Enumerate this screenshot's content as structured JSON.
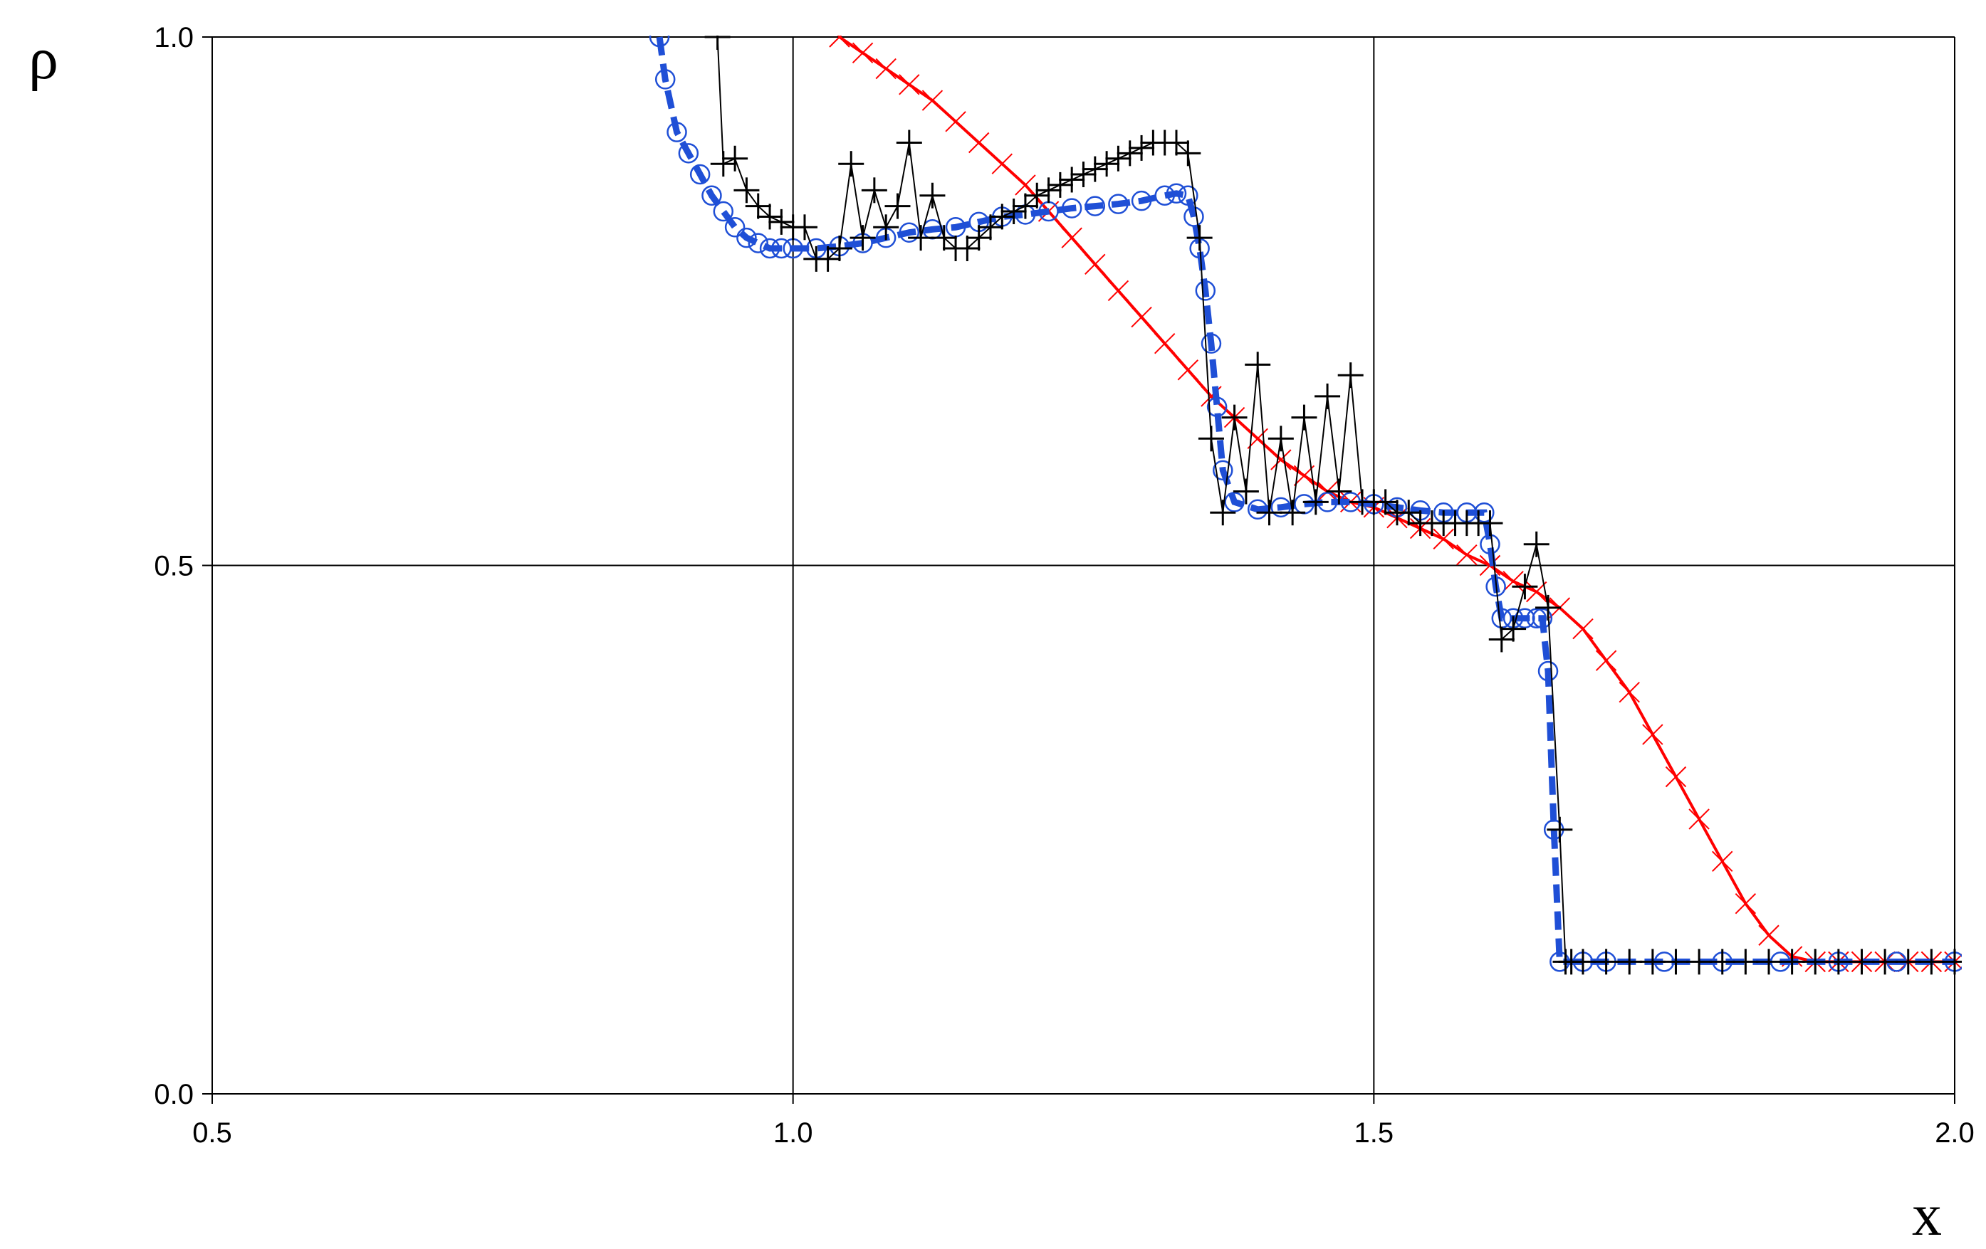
{
  "chart_data": {
    "type": "line",
    "xlabel": "x",
    "ylabel": "ρ",
    "xlim": [
      0.5,
      2.0
    ],
    "ylim": [
      0.0,
      1.0
    ],
    "xticks": [
      "0.5",
      "1.0",
      "1.5",
      "2.0"
    ],
    "yticks": [
      "0.0",
      "0.5",
      "1.0"
    ],
    "grid": true,
    "series": [
      {
        "color": "#ff0000",
        "style": "solid line with x markers",
        "x": [
          1.04,
          1.06,
          1.08,
          1.1,
          1.12,
          1.14,
          1.16,
          1.18,
          1.2,
          1.22,
          1.24,
          1.26,
          1.28,
          1.3,
          1.32,
          1.34,
          1.36,
          1.38,
          1.4,
          1.42,
          1.44,
          1.46,
          1.48,
          1.5,
          1.52,
          1.54,
          1.56,
          1.58,
          1.6,
          1.62,
          1.64,
          1.66,
          1.68,
          1.7,
          1.72,
          1.74,
          1.76,
          1.78,
          1.8,
          1.82,
          1.84,
          1.86,
          1.88,
          1.9,
          1.92,
          1.94,
          1.96,
          1.98,
          2.0
        ],
        "y": [
          1.0,
          0.985,
          0.97,
          0.955,
          0.94,
          0.92,
          0.9,
          0.88,
          0.86,
          0.835,
          0.81,
          0.785,
          0.76,
          0.735,
          0.71,
          0.685,
          0.66,
          0.64,
          0.62,
          0.6,
          0.585,
          0.57,
          0.56,
          0.555,
          0.545,
          0.535,
          0.525,
          0.51,
          0.5,
          0.485,
          0.475,
          0.46,
          0.44,
          0.41,
          0.38,
          0.34,
          0.3,
          0.26,
          0.22,
          0.18,
          0.15,
          0.13,
          0.125,
          0.125,
          0.125,
          0.125,
          0.125,
          0.125,
          0.125
        ]
      },
      {
        "color": "#1f4fd6",
        "style": "thick dashed line with circle markers",
        "x": [
          0.885,
          0.89,
          0.9,
          0.91,
          0.92,
          0.93,
          0.94,
          0.95,
          0.96,
          0.97,
          0.98,
          0.99,
          1.0,
          1.02,
          1.04,
          1.06,
          1.08,
          1.1,
          1.12,
          1.14,
          1.16,
          1.18,
          1.2,
          1.22,
          1.24,
          1.26,
          1.28,
          1.3,
          1.32,
          1.33,
          1.34,
          1.345,
          1.35,
          1.355,
          1.36,
          1.365,
          1.37,
          1.38,
          1.4,
          1.42,
          1.44,
          1.46,
          1.48,
          1.5,
          1.52,
          1.54,
          1.56,
          1.58,
          1.595,
          1.6,
          1.605,
          1.61,
          1.62,
          1.63,
          1.64,
          1.645,
          1.65,
          1.655,
          1.66,
          1.68,
          1.7,
          1.75,
          1.8,
          1.85,
          1.9,
          1.95,
          2.0
        ],
        "y": [
          1.0,
          0.96,
          0.91,
          0.89,
          0.87,
          0.85,
          0.835,
          0.82,
          0.81,
          0.805,
          0.8,
          0.8,
          0.8,
          0.8,
          0.802,
          0.805,
          0.81,
          0.815,
          0.818,
          0.82,
          0.825,
          0.83,
          0.832,
          0.835,
          0.838,
          0.84,
          0.842,
          0.845,
          0.85,
          0.852,
          0.85,
          0.83,
          0.8,
          0.76,
          0.71,
          0.65,
          0.59,
          0.56,
          0.553,
          0.555,
          0.558,
          0.56,
          0.56,
          0.558,
          0.555,
          0.552,
          0.55,
          0.55,
          0.55,
          0.52,
          0.48,
          0.45,
          0.45,
          0.45,
          0.45,
          0.45,
          0.4,
          0.25,
          0.125,
          0.125,
          0.125,
          0.125,
          0.125,
          0.125,
          0.125,
          0.125,
          0.125
        ]
      },
      {
        "color": "#000000",
        "style": "thin solid line with plus markers",
        "x": [
          0.935,
          0.94,
          0.95,
          0.96,
          0.97,
          0.98,
          0.99,
          1.0,
          1.01,
          1.02,
          1.03,
          1.04,
          1.05,
          1.06,
          1.07,
          1.08,
          1.09,
          1.1,
          1.11,
          1.12,
          1.13,
          1.14,
          1.15,
          1.16,
          1.17,
          1.18,
          1.19,
          1.2,
          1.21,
          1.22,
          1.23,
          1.24,
          1.25,
          1.26,
          1.27,
          1.28,
          1.29,
          1.3,
          1.31,
          1.32,
          1.33,
          1.34,
          1.35,
          1.36,
          1.37,
          1.38,
          1.39,
          1.4,
          1.41,
          1.42,
          1.43,
          1.44,
          1.45,
          1.46,
          1.47,
          1.48,
          1.49,
          1.5,
          1.51,
          1.52,
          1.53,
          1.54,
          1.55,
          1.56,
          1.57,
          1.58,
          1.59,
          1.6,
          1.61,
          1.62,
          1.63,
          1.64,
          1.65,
          1.66,
          1.665,
          1.67,
          1.68,
          1.7,
          1.72,
          1.74,
          1.76,
          1.78,
          1.8,
          1.82,
          1.84,
          1.86,
          1.88,
          1.9,
          1.92,
          1.94,
          1.96,
          1.98,
          2.0
        ],
        "y": [
          1.0,
          0.88,
          0.885,
          0.855,
          0.84,
          0.83,
          0.825,
          0.82,
          0.82,
          0.79,
          0.79,
          0.8,
          0.88,
          0.81,
          0.855,
          0.82,
          0.84,
          0.9,
          0.81,
          0.85,
          0.81,
          0.8,
          0.8,
          0.81,
          0.82,
          0.83,
          0.835,
          0.84,
          0.85,
          0.855,
          0.86,
          0.865,
          0.87,
          0.875,
          0.88,
          0.885,
          0.89,
          0.895,
          0.9,
          0.9,
          0.9,
          0.89,
          0.81,
          0.62,
          0.55,
          0.64,
          0.57,
          0.69,
          0.55,
          0.62,
          0.55,
          0.64,
          0.56,
          0.66,
          0.57,
          0.68,
          0.56,
          0.56,
          0.56,
          0.55,
          0.55,
          0.54,
          0.54,
          0.54,
          0.54,
          0.54,
          0.54,
          0.54,
          0.43,
          0.44,
          0.48,
          0.52,
          0.46,
          0.25,
          0.125,
          0.125,
          0.125,
          0.125,
          0.125,
          0.125,
          0.125,
          0.125,
          0.125,
          0.125,
          0.125,
          0.125,
          0.125,
          0.125,
          0.125,
          0.125,
          0.125,
          0.125,
          0.125
        ]
      }
    ]
  }
}
